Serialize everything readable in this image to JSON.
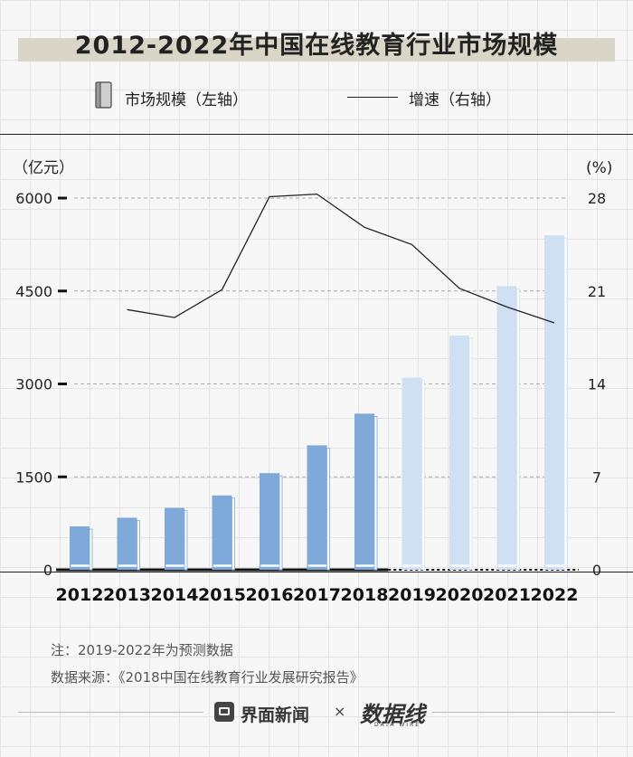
{
  "chart_data": {
    "type": "bar",
    "title": "2012-2022年中国在线教育行业市场规模",
    "categories": [
      "2012",
      "2013",
      "2014",
      "2015",
      "2016",
      "2017",
      "2018",
      "2019",
      "2020",
      "2021",
      "2022"
    ],
    "series": [
      {
        "name": "市场规模（左轴）",
        "type": "bar",
        "axis": "left",
        "values": [
          700,
          840,
          1000,
          1200,
          1560,
          2010,
          2520,
          3100,
          3780,
          4580,
          5400
        ]
      },
      {
        "name": "增速（右轴）",
        "type": "line",
        "axis": "right",
        "values": [
          null,
          19.6,
          19.0,
          21.1,
          28.1,
          28.3,
          25.8,
          24.5,
          21.2,
          19.8,
          18.6
        ]
      }
    ],
    "forecast_from": "2019",
    "left_axis": {
      "unit": "（亿元）",
      "ticks": [
        0,
        1500,
        3000,
        4500,
        6000
      ],
      "ylim": [
        0,
        6000
      ]
    },
    "right_axis": {
      "unit": "(%)",
      "ticks": [
        0,
        7,
        14,
        21,
        28
      ],
      "ylim": [
        0,
        28
      ]
    },
    "colors": {
      "actual_bar": "#7fa9d9",
      "forecast_bar": "#cfe0f3",
      "line": "#222222"
    },
    "legend_position": "top"
  },
  "legend": {
    "bar_label": "市场规模（左轴）",
    "line_label": "增速（右轴）"
  },
  "notes": {
    "forecast_note": "注：2019-2022年为预测数据",
    "source": "数据来源：《2018中国在线教育行业发展研究报告》"
  },
  "footer": {
    "brand": "界面新闻",
    "separator": "×",
    "brand2": "数据线",
    "brand2_sub": "DATA WIRE"
  }
}
